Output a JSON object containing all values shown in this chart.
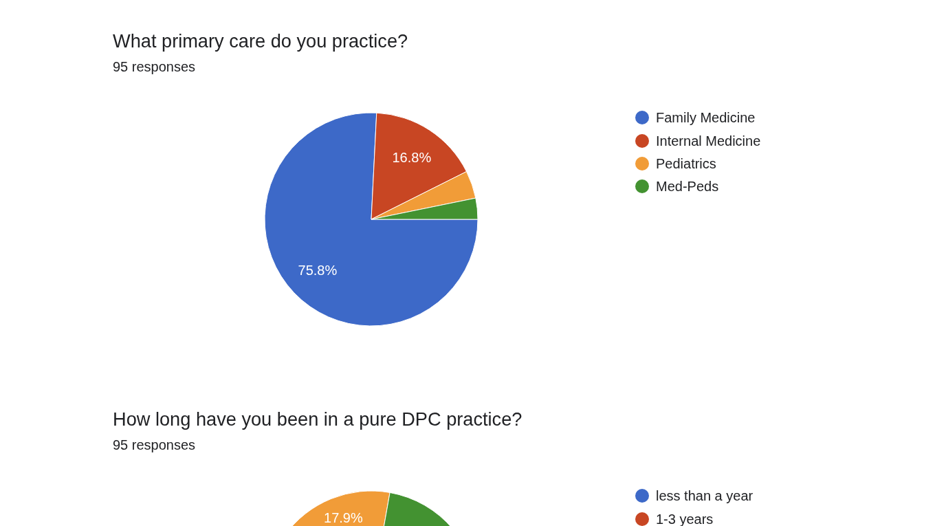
{
  "chart_data": [
    {
      "type": "pie",
      "title": "What primary care do you practice?",
      "subtitle": "95 responses",
      "categories": [
        "Family Medicine",
        "Internal Medicine",
        "Pediatrics",
        "Med-Peds"
      ],
      "values": [
        75.8,
        16.8,
        4.2,
        3.2
      ],
      "colors": [
        "#3d69c8",
        "#c84623",
        "#f19c38",
        "#439231"
      ],
      "value_labels": [
        "75.8%",
        "16.8%",
        null,
        null
      ],
      "legend": "right"
    },
    {
      "type": "pie",
      "title": "How long have you been in a pure DPC practice?",
      "subtitle": "95 responses",
      "categories": [
        "less than a year",
        "1-3 years",
        null,
        null
      ],
      "values": [
        null,
        null,
        17.9,
        22.2
      ],
      "colors": [
        "#3d69c8",
        "#c84623",
        "#f19c38",
        "#439231"
      ],
      "value_labels": [
        null,
        null,
        "17.9%",
        null
      ],
      "legend": "right"
    }
  ]
}
